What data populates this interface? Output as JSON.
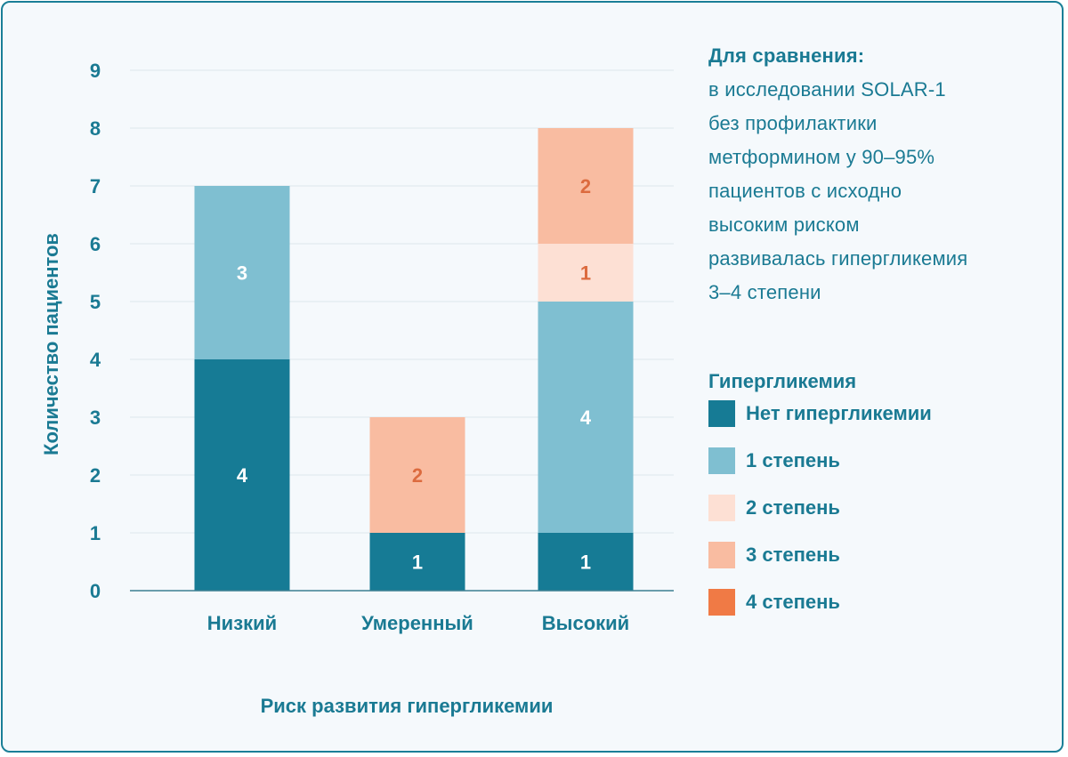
{
  "chart_data": {
    "type": "bar",
    "stacked": true,
    "categories": [
      "Низкий",
      "Умеренный",
      "Высокий"
    ],
    "series": [
      {
        "name": "Нет гипергликемии",
        "values": [
          4,
          1,
          1
        ],
        "color": "#167b95",
        "label_color": "#ffffff"
      },
      {
        "name": "1 степень",
        "values": [
          3,
          0,
          4
        ],
        "color": "#7fbfd1",
        "label_color": "#ffffff"
      },
      {
        "name": "2 степень",
        "values": [
          0,
          0,
          1
        ],
        "color": "#fde0d4",
        "label_color": "#dc6b3f"
      },
      {
        "name": "3 степень",
        "values": [
          0,
          2,
          2
        ],
        "color": "#f9bca1",
        "label_color": "#dc6b3f"
      },
      {
        "name": "4 степень",
        "values": [
          0,
          0,
          0
        ],
        "color": "#f07a45",
        "label_color": "#ffffff"
      }
    ],
    "xlabel": "Риск развития гипергликемии",
    "ylabel": "Количество пациентов",
    "ylim": [
      0,
      9
    ],
    "yticks": [
      0,
      1,
      2,
      3,
      4,
      5,
      6,
      7,
      8,
      9
    ],
    "grid": true,
    "legend_title": "Гипергликемия",
    "legend_position": "right"
  },
  "note": {
    "heading": "Для сравнения:",
    "lines": [
      "в исследовании SOLAR-1",
      "без профилактики",
      "метформином у 90–95%",
      "пациентов с исходно",
      "высоким риском",
      "развивалась гипергликемия",
      "3–4 степени"
    ]
  },
  "colors": {
    "text": "#1a7a93",
    "frame": "#1a7f97",
    "background": "#f5f9fc",
    "grid": "#dde6ec",
    "axis": "#3b7f92"
  }
}
